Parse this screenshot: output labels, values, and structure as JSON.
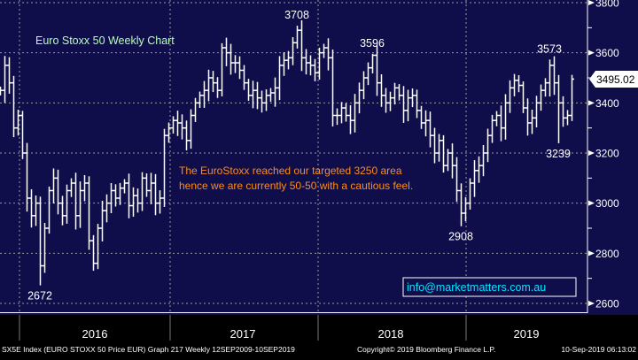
{
  "chart_data": {
    "type": "ohlc",
    "title": "Euro Stoxx 50 Weekly Chart",
    "note_lines": [
      "The EuroStoxx reached our targeted 3250 area",
      "hence we are currently 50-50 with a cautious feel."
    ],
    "contact": "info@marketmatters.com.au",
    "last_price": "3495.02",
    "ylim": [
      2600,
      3800
    ],
    "y_ticks": [
      "2600",
      "2800",
      "3000",
      "3200",
      "3400",
      "3600",
      "3800"
    ],
    "x_labels": [
      "2016",
      "2017",
      "2018",
      "2019"
    ],
    "closes": [
      3450,
      3550,
      3480,
      3300,
      3350,
      3200,
      3020,
      2950,
      3000,
      2750,
      2900,
      3050,
      3100,
      3000,
      2950,
      3050,
      3080,
      2950,
      3050,
      3080,
      2850,
      2760,
      2900,
      2970,
      3000,
      3050,
      3020,
      3060,
      3080,
      2990,
      3030,
      3000,
      3100,
      3050,
      3080,
      3000,
      3020,
      3270,
      3300,
      3330,
      3320,
      3300,
      3250,
      3350,
      3400,
      3430,
      3450,
      3500,
      3480,
      3450,
      3620,
      3600,
      3560,
      3560,
      3530,
      3480,
      3430,
      3450,
      3420,
      3400,
      3430,
      3440,
      3460,
      3550,
      3570,
      3580,
      3640,
      3690,
      3580,
      3560,
      3550,
      3520,
      3600,
      3620,
      3580,
      3350,
      3350,
      3380,
      3350,
      3330,
      3400,
      3450,
      3500,
      3540,
      3590,
      3480,
      3430,
      3400,
      3420,
      3460,
      3430,
      3370,
      3420,
      3430,
      3370,
      3320,
      3330,
      3270,
      3200,
      3250,
      3150,
      3200,
      3150,
      3050,
      2960,
      3000,
      3080,
      3130,
      3150,
      3200,
      3270,
      3330,
      3350,
      3300,
      3400,
      3460,
      3490,
      3470,
      3380,
      3320,
      3340,
      3400,
      3450,
      3480,
      3550,
      3480,
      3400,
      3340,
      3350,
      3495
    ],
    "annotations": [
      {
        "label": "2672",
        "index": 9,
        "value": 2672,
        "kind": "low"
      },
      {
        "label": "3708",
        "index": 67,
        "value": 3708,
        "kind": "high"
      },
      {
        "label": "3596",
        "index": 84,
        "value": 3596,
        "kind": "high"
      },
      {
        "label": "2908",
        "index": 104,
        "value": 2908,
        "kind": "low"
      },
      {
        "label": "3573",
        "index": 124,
        "value": 3573,
        "kind": "high"
      },
      {
        "label": "3239",
        "index": 126,
        "value": 3239,
        "kind": "low"
      }
    ]
  },
  "footer": {
    "security": "SX5E Index (EURO STOXX 50 Price EUR) Graph 217  Weekly 12SEP2009-10SEP2019",
    "copyright": "Copyright© 2019 Bloomberg Finance L.P.",
    "timestamp": "10-Sep-2019 06:13:02"
  },
  "colors": {
    "background": "#0f0e4a",
    "bars": "#ffffff",
    "title": "#b8ffb8",
    "note": "#ff8c1a",
    "contact": "#00e5ff"
  }
}
